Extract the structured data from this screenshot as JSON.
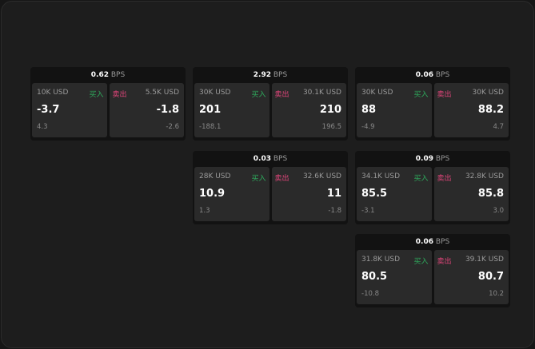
{
  "unit": "BPS",
  "buy_label": "买入",
  "sell_label": "卖出",
  "colors": {
    "buy": "#2eaa5c",
    "sell": "#e0457a"
  },
  "cards": [
    {
      "spread": "0.62",
      "buy": {
        "amount": "10K USD",
        "price": "-3.7",
        "change": "4.3"
      },
      "sell": {
        "amount": "5.5K USD",
        "price": "-1.8",
        "change": "-2.6"
      }
    },
    {
      "spread": "2.92",
      "buy": {
        "amount": "30K USD",
        "price": "201",
        "change": "-188.1"
      },
      "sell": {
        "amount": "30.1K USD",
        "price": "210",
        "change": "196.5"
      }
    },
    {
      "spread": "0.06",
      "buy": {
        "amount": "30K USD",
        "price": "88",
        "change": "-4.9"
      },
      "sell": {
        "amount": "30K USD",
        "price": "88.2",
        "change": "4.7"
      }
    },
    {
      "spread": "0.03",
      "buy": {
        "amount": "28K USD",
        "price": "10.9",
        "change": "1.3"
      },
      "sell": {
        "amount": "32.6K USD",
        "price": "11",
        "change": "-1.8"
      }
    },
    {
      "spread": "0.09",
      "buy": {
        "amount": "34.1K USD",
        "price": "85.5",
        "change": "-3.1"
      },
      "sell": {
        "amount": "32.8K USD",
        "price": "85.8",
        "change": "3.0"
      }
    },
    {
      "spread": "0.06",
      "buy": {
        "amount": "31.8K USD",
        "price": "80.5",
        "change": "-10.8"
      },
      "sell": {
        "amount": "39.1K USD",
        "price": "80.7",
        "change": "10.2"
      }
    }
  ]
}
